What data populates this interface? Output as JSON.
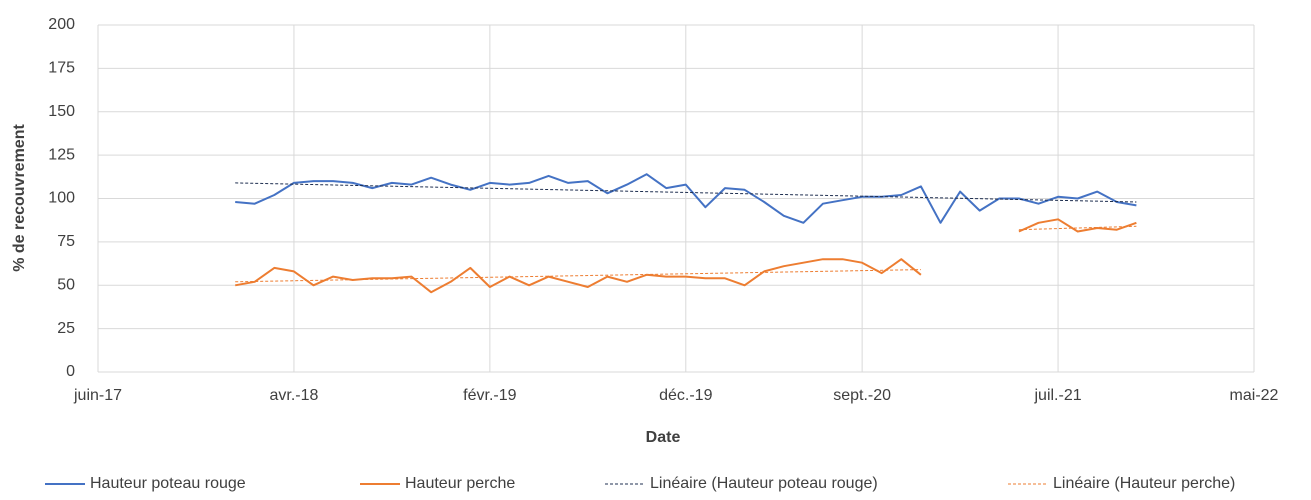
{
  "chart_data": {
    "type": "line",
    "xlabel": "Date",
    "ylabel": "% de recouvrement",
    "x": [
      "2018-01",
      "2018-02",
      "2018-03",
      "2018-04",
      "2018-05",
      "2018-06",
      "2018-07",
      "2018-08",
      "2018-09",
      "2018-10",
      "2018-11",
      "2018-12",
      "2019-01",
      "2019-02",
      "2019-03",
      "2019-04",
      "2019-05",
      "2019-06",
      "2019-07",
      "2019-08",
      "2019-09",
      "2019-10",
      "2019-11",
      "2019-12",
      "2020-01",
      "2020-02",
      "2020-03",
      "2020-04",
      "2020-05",
      "2020-06",
      "2020-07",
      "2020-08",
      "2020-09",
      "2020-10",
      "2020-11",
      "2020-12",
      "2021-01",
      "2021-02",
      "2021-03",
      "2021-04",
      "2021-05",
      "2021-06",
      "2021-07",
      "2021-08",
      "2021-09",
      "2021-10",
      "2021-11"
    ],
    "series": [
      {
        "name": "Hauteur poteau rouge",
        "color": "#4472c4",
        "dash": false,
        "values": [
          98,
          97,
          102,
          109,
          110,
          110,
          109,
          106,
          109,
          108,
          112,
          108,
          105,
          109,
          108,
          109,
          113,
          109,
          110,
          103,
          108,
          114,
          106,
          108,
          95,
          106,
          105,
          98,
          90,
          86,
          97,
          99,
          101,
          101,
          102,
          107,
          86,
          104,
          93,
          100,
          100,
          97,
          101,
          100,
          104,
          98,
          96
        ]
      },
      {
        "name": "Hauteur perche",
        "color": "#ed7d31",
        "dash": false,
        "values": [
          50,
          52,
          60,
          58,
          50,
          55,
          53,
          54,
          54,
          55,
          46,
          52,
          60,
          49,
          55,
          50,
          55,
          52,
          49,
          55,
          52,
          56,
          55,
          55,
          54,
          54,
          50,
          58,
          61,
          63,
          65,
          65,
          63,
          57,
          65,
          56,
          null,
          null,
          null,
          null,
          81,
          86,
          88,
          81,
          83,
          82,
          86
        ]
      },
      {
        "name": "Linéaire (Hauteur poteau rouge)",
        "color": "#1f2f50",
        "dash": true,
        "x": [
          "2018-01",
          "2021-11"
        ],
        "values": [
          109,
          98
        ]
      },
      {
        "name": "Linéaire (Hauteur perche)",
        "color": "#ed7d31",
        "dash": true,
        "x": [
          "2018-01",
          "2020-12",
          null,
          "2021-05",
          "2021-11"
        ],
        "values": [
          52,
          59,
          null,
          82,
          84
        ]
      }
    ],
    "xlim": [
      "2017-06",
      "2022-05"
    ],
    "xticks": [
      {
        "value": "2017-06",
        "label": "juin-17"
      },
      {
        "value": "2018-04",
        "label": "avr.-18"
      },
      {
        "value": "2019-02",
        "label": "févr.-19"
      },
      {
        "value": "2019-12",
        "label": "déc.-19"
      },
      {
        "value": "2020-09",
        "label": "sept.-20"
      },
      {
        "value": "2021-07",
        "label": "juil.-21"
      },
      {
        "value": "2022-05",
        "label": "mai-22"
      }
    ],
    "ylim": [
      0,
      200
    ],
    "yticks": [
      0,
      25,
      50,
      75,
      100,
      125,
      150,
      175,
      200
    ],
    "grid": true,
    "legend": "bottom"
  }
}
